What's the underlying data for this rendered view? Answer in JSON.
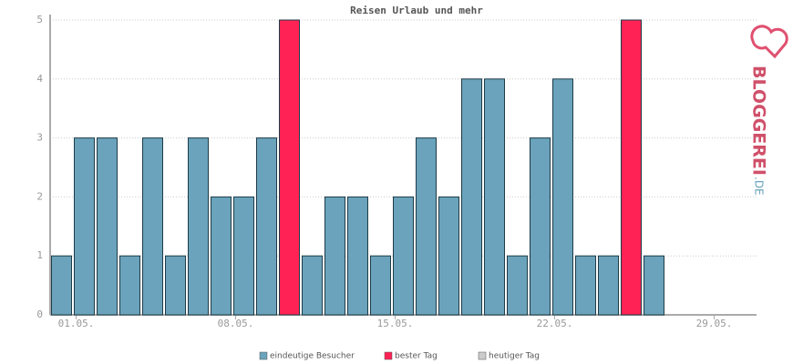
{
  "chart_data": {
    "type": "bar",
    "title": "Reisen Urlaub und mehr",
    "categories": [
      "01.05.",
      null,
      null,
      null,
      null,
      null,
      null,
      "08.05.",
      null,
      null,
      null,
      null,
      null,
      null,
      "15.05.",
      null,
      null,
      null,
      null,
      null,
      null,
      "22.05.",
      null,
      null,
      null,
      null,
      null,
      null,
      "29.05.",
      null,
      null
    ],
    "series": [
      {
        "name": "eindeutige Besucher",
        "color": "#6aa3bb",
        "values": [
          1,
          3,
          3,
          1,
          3,
          1,
          3,
          2,
          2,
          3,
          null,
          1,
          2,
          2,
          1,
          2,
          3,
          2,
          4,
          4,
          1,
          3,
          4,
          1,
          1,
          null,
          1,
          null,
          null,
          null,
          null
        ]
      },
      {
        "name": "bester Tag",
        "color": "#ff2255",
        "values": [
          null,
          null,
          null,
          null,
          null,
          null,
          null,
          null,
          null,
          null,
          5,
          null,
          null,
          null,
          null,
          null,
          null,
          null,
          null,
          null,
          null,
          null,
          null,
          null,
          null,
          5,
          null,
          null,
          null,
          null,
          null
        ]
      },
      {
        "name": "heutiger Tag",
        "color": "#cccccc",
        "values": [
          null,
          null,
          null,
          null,
          null,
          null,
          null,
          null,
          null,
          null,
          null,
          null,
          null,
          null,
          null,
          null,
          null,
          null,
          null,
          null,
          null,
          null,
          null,
          null,
          null,
          null,
          null,
          null,
          null,
          null,
          null
        ]
      }
    ],
    "ylim": [
      0,
      5
    ],
    "yticks": [
      0,
      1,
      2,
      3,
      4,
      5
    ],
    "grid": true
  },
  "logo": {
    "name": "BLOGGEREI",
    "suffix": ".DE"
  }
}
